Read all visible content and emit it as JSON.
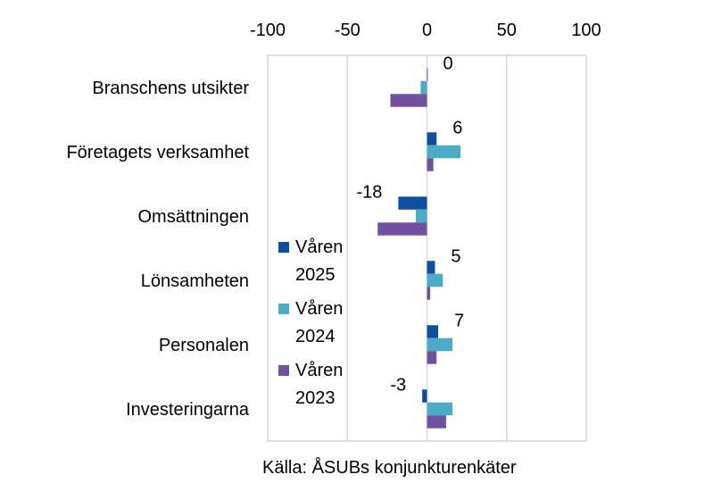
{
  "chart_data": {
    "type": "bar",
    "orientation": "horizontal",
    "categories": [
      "Branschens utsikter",
      "Företagets verksamhet",
      "Omsättningen",
      "Lönsamheten",
      "Personalen",
      "Investeringarna"
    ],
    "series": [
      {
        "name": "Våren 2025",
        "color": "#0B4EA2",
        "values": [
          0,
          6,
          -18,
          5,
          7,
          -3
        ]
      },
      {
        "name": "Våren 2024",
        "color": "#4BACC6",
        "values": [
          -4,
          21,
          -7,
          10,
          16,
          16
        ]
      },
      {
        "name": "Våren 2023",
        "color": "#7152A0",
        "values": [
          -23,
          4,
          -31,
          2,
          6,
          12
        ]
      }
    ],
    "data_labels": [
      "0",
      "6",
      "-18",
      "5",
      "7",
      "-3"
    ],
    "xlim": [
      -100,
      100
    ],
    "xticks": [
      -100,
      -50,
      0,
      50,
      100
    ],
    "grid": true,
    "x_axis_position": "top",
    "legend": {
      "position": "inside-left",
      "entries": [
        {
          "line1": "Våren",
          "line2": "2025"
        },
        {
          "line1": "Våren",
          "line2": "2024"
        },
        {
          "line1": "Våren",
          "line2": "2023"
        }
      ]
    },
    "source": "Källa: ÅSUBs konjunkturenkäter"
  }
}
